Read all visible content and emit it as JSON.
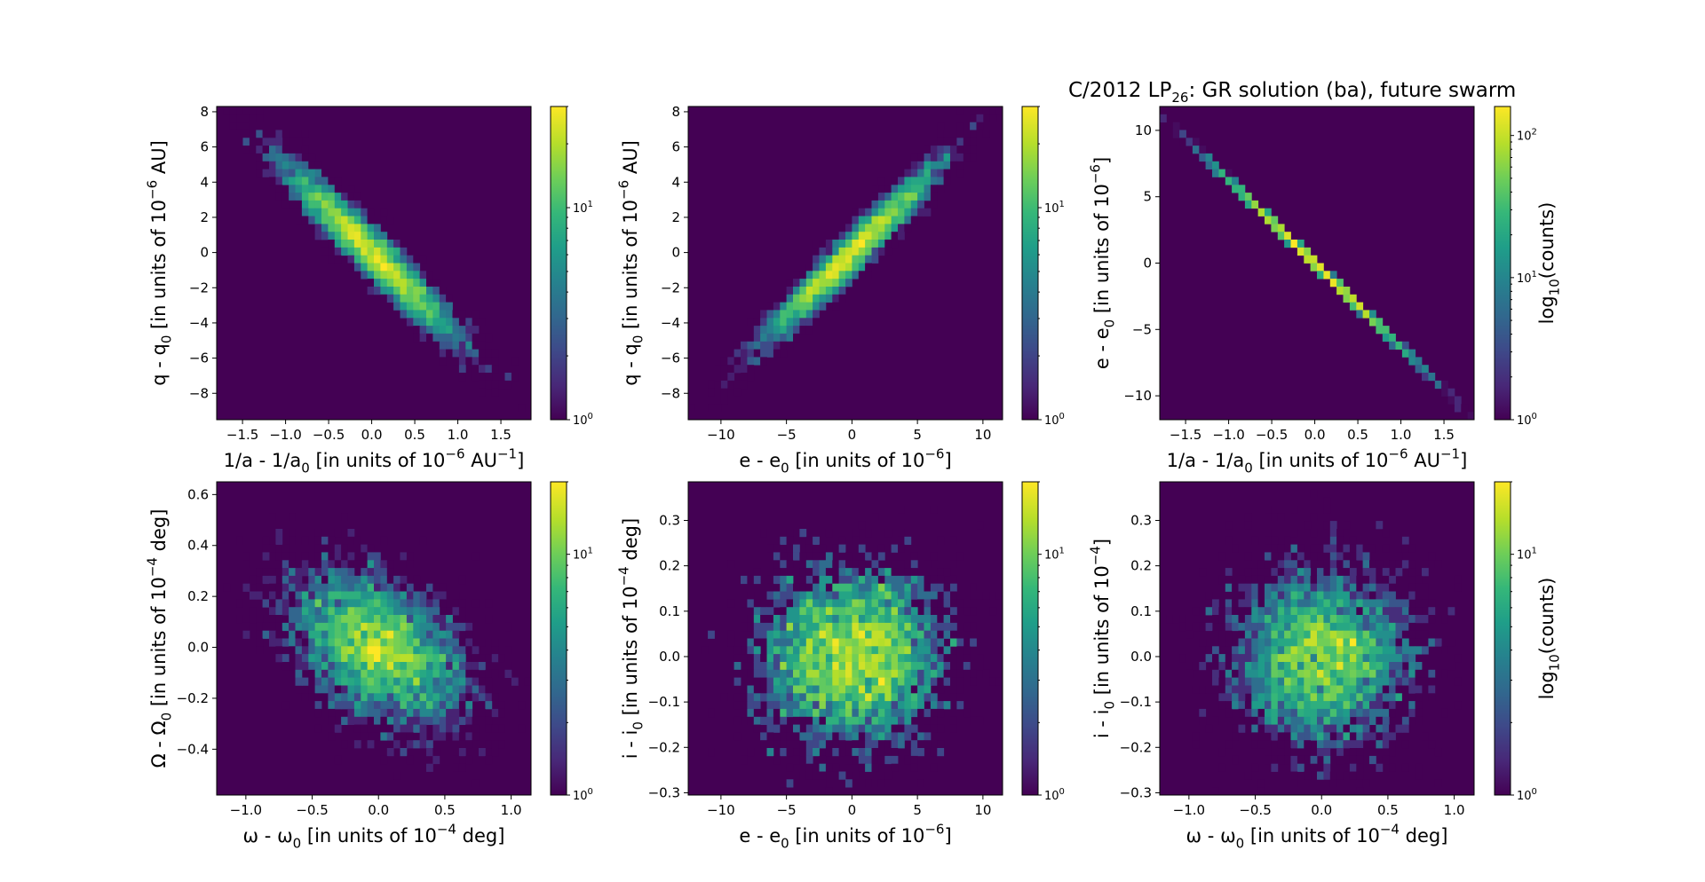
{
  "figure": {
    "title": "C/2012 LP",
    "title_sub": "26",
    "title_rest": ": GR solution (ba), future swarm"
  },
  "colors": {
    "background": "#440154",
    "colormap": [
      "#440154",
      "#482878",
      "#3e4989",
      "#31688e",
      "#26828e",
      "#1f9e89",
      "#35b779",
      "#6ece58",
      "#b5de2b",
      "#fde725"
    ]
  },
  "chart_data": [
    {
      "type": "heatmap",
      "xlabel": "1/a - 1/a0 [in units of 10^-6 AU^-1]",
      "ylabel": "q - q0 [in units of 10^-6 AU]",
      "xlim": [
        -1.8,
        1.85
      ],
      "ylim": [
        -9.5,
        8.3
      ],
      "xticks": [
        -1.5,
        -1.0,
        -0.5,
        0.0,
        0.5,
        1.0,
        1.5
      ],
      "xtick_labels": [
        "−1.5",
        "−1.0",
        "−0.5",
        "0.0",
        "0.5",
        "1.0",
        "1.5"
      ],
      "yticks": [
        -8,
        -6,
        -4,
        -2,
        0,
        2,
        4,
        6,
        8
      ],
      "ytick_labels": [
        "−8",
        "−6",
        "−4",
        "−2",
        "0",
        "2",
        "4",
        "6",
        "8"
      ],
      "distribution": {
        "mean_x": 0.0,
        "mean_y": 0.0,
        "sd_x": 0.55,
        "sd_y": 2.7,
        "correlation": -0.96
      },
      "colorbar": {
        "scale": "log",
        "max": 30,
        "tick_labels": [
          "10^0",
          "10^1"
        ],
        "label": ""
      }
    },
    {
      "type": "heatmap",
      "xlabel": "e - e0 [in units of 10^-6]",
      "ylabel": "q - q0 [in units of 10^-6 AU]",
      "xlim": [
        -12.5,
        11.5
      ],
      "ylim": [
        -9.5,
        8.3
      ],
      "xticks": [
        -10,
        -5,
        0,
        5,
        10
      ],
      "xtick_labels": [
        "−10",
        "−5",
        "0",
        "5",
        "10"
      ],
      "yticks": [
        -8,
        -6,
        -4,
        -2,
        0,
        2,
        4,
        6,
        8
      ],
      "ytick_labels": [
        "−8",
        "−6",
        "−4",
        "−2",
        "0",
        "2",
        "4",
        "6",
        "8"
      ],
      "distribution": {
        "mean_x": 0.0,
        "mean_y": 0.0,
        "sd_x": 3.6,
        "sd_y": 2.7,
        "correlation": 0.97
      },
      "colorbar": {
        "scale": "log",
        "max": 30,
        "tick_labels": [
          "10^0",
          "10^1"
        ],
        "label": ""
      }
    },
    {
      "type": "heatmap",
      "xlabel": "1/a - 1/a0 [in units of 10^-6 AU^-1]",
      "ylabel": "e - e0 [in units of 10^-6]",
      "xlim": [
        -1.8,
        1.85
      ],
      "ylim": [
        -11.8,
        11.8
      ],
      "xticks": [
        -1.5,
        -1.0,
        -0.5,
        0.0,
        0.5,
        1.0,
        1.5
      ],
      "xtick_labels": [
        "−1.5",
        "−1.0",
        "−0.5",
        "0.0",
        "0.5",
        "1.0",
        "1.5"
      ],
      "yticks": [
        -10,
        -5,
        0,
        5,
        10
      ],
      "ytick_labels": [
        "−10",
        "−5",
        "0",
        "5",
        "10"
      ],
      "line": {
        "from": [
          -1.7,
          10.7
        ],
        "to": [
          1.72,
          -10.9
        ]
      },
      "distribution": {
        "mean_x": 0.0,
        "mean_y": 0.0,
        "sd_x": 0.55,
        "sd_y": 3.5,
        "correlation": -1.0
      },
      "colorbar": {
        "scale": "log",
        "max": 160,
        "tick_labels": [
          "10^0",
          "10^1",
          "10^2"
        ],
        "label": "log10(counts)"
      }
    },
    {
      "type": "heatmap",
      "xlabel": "ω - ω0 [in units of 10^-4 deg]",
      "ylabel": "Ω - Ω0 [in units of 10^-4 deg]",
      "xlim": [
        -1.22,
        1.15
      ],
      "ylim": [
        -0.58,
        0.65
      ],
      "xticks": [
        -1.0,
        -0.5,
        0.0,
        0.5,
        1.0
      ],
      "xtick_labels": [
        "−1.0",
        "−0.5",
        "0.0",
        "0.5",
        "1.0"
      ],
      "yticks": [
        -0.4,
        -0.2,
        0.0,
        0.2,
        0.4,
        0.6
      ],
      "ytick_labels": [
        "−0.4",
        "−0.2",
        "0.0",
        "0.2",
        "0.4",
        "0.6"
      ],
      "distribution": {
        "mean_x": 0.0,
        "mean_y": 0.0,
        "sd_x": 0.35,
        "sd_y": 0.16,
        "correlation": -0.45
      },
      "colorbar": {
        "scale": "log",
        "max": 20,
        "tick_labels": [
          "10^0",
          "10^1"
        ],
        "label": ""
      }
    },
    {
      "type": "heatmap",
      "xlabel": "e - e0 [in units of 10^-6]",
      "ylabel": "i - i0 [in units of 10^-4 deg]",
      "xlim": [
        -12.5,
        11.5
      ],
      "ylim": [
        -0.305,
        0.385
      ],
      "xticks": [
        -10,
        -5,
        0,
        5,
        10
      ],
      "xtick_labels": [
        "−10",
        "−5",
        "0",
        "5",
        "10"
      ],
      "yticks": [
        -0.3,
        -0.2,
        -0.1,
        0.0,
        0.1,
        0.2,
        0.3
      ],
      "ytick_labels": [
        "−0.3",
        "−0.2",
        "−0.1",
        "0.0",
        "0.1",
        "0.2",
        "0.3"
      ],
      "distribution": {
        "mean_x": 0.0,
        "mean_y": 0.0,
        "sd_x": 3.6,
        "sd_y": 0.1,
        "correlation": 0.0
      },
      "colorbar": {
        "scale": "log",
        "max": 20,
        "tick_labels": [
          "10^0",
          "10^1"
        ],
        "label": ""
      }
    },
    {
      "type": "heatmap",
      "xlabel": "ω - ω0 [in units of 10^-4 deg]",
      "ylabel": "i - i0 [in units of 10^-4]",
      "xlim": [
        -1.22,
        1.15
      ],
      "ylim": [
        -0.305,
        0.385
      ],
      "xticks": [
        -1.0,
        -0.5,
        0.0,
        0.5,
        1.0
      ],
      "xtick_labels": [
        "−1.0",
        "−0.5",
        "0.0",
        "0.5",
        "1.0"
      ],
      "yticks": [
        -0.3,
        -0.2,
        -0.1,
        0.0,
        0.1,
        0.2,
        0.3
      ],
      "ytick_labels": [
        "−0.3",
        "−0.2",
        "−0.1",
        "0.0",
        "0.1",
        "0.2",
        "0.3"
      ],
      "distribution": {
        "mean_x": 0.0,
        "mean_y": 0.0,
        "sd_x": 0.35,
        "sd_y": 0.1,
        "correlation": 0.0
      },
      "colorbar": {
        "scale": "log",
        "max": 20,
        "tick_labels": [
          "10^0",
          "10^1"
        ],
        "label": "log10(counts)"
      }
    }
  ]
}
